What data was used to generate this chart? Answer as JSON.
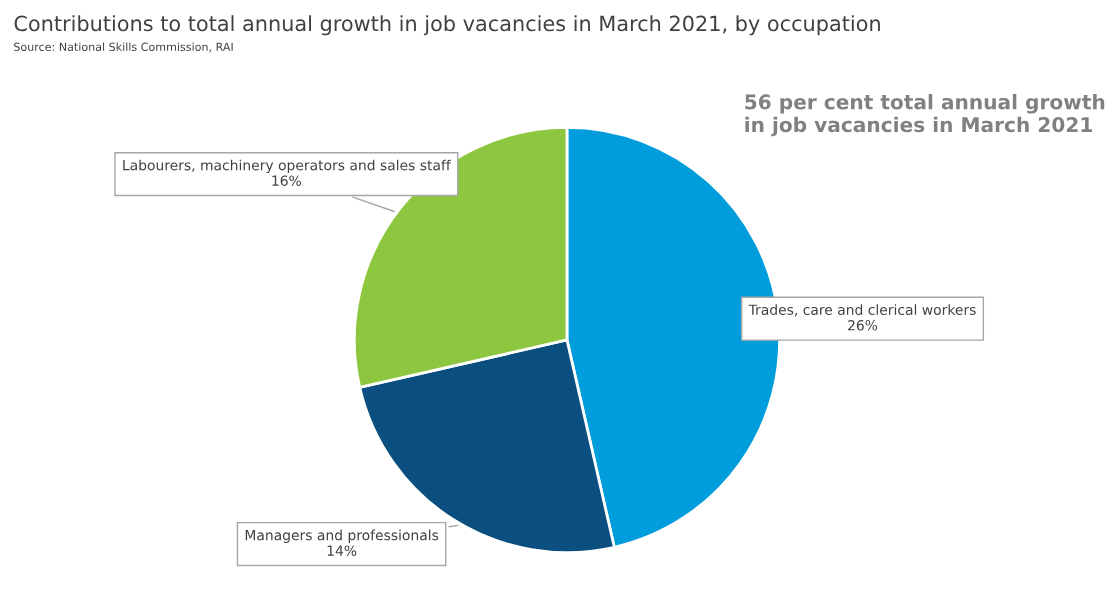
{
  "chart_data": {
    "type": "pie",
    "title": "Contributions to total annual growth in job vacancies in March 2021, by occupation",
    "subtitle": "Source: National Skills Commission, RAI",
    "annotations": [
      "56 per cent total annual growth\nin job vacancies in March 2021"
    ],
    "categories": [
      "Trades, care and clerical workers",
      "Managers and professionals",
      "Labourers, machinery operators and sales staff"
    ],
    "values": [
      26,
      14,
      16
    ],
    "value_labels": [
      "26%",
      "14%",
      "16%"
    ],
    "colors": [
      "#009ddc",
      "#0b4f80",
      "#8dc63f"
    ],
    "legend": false
  }
}
